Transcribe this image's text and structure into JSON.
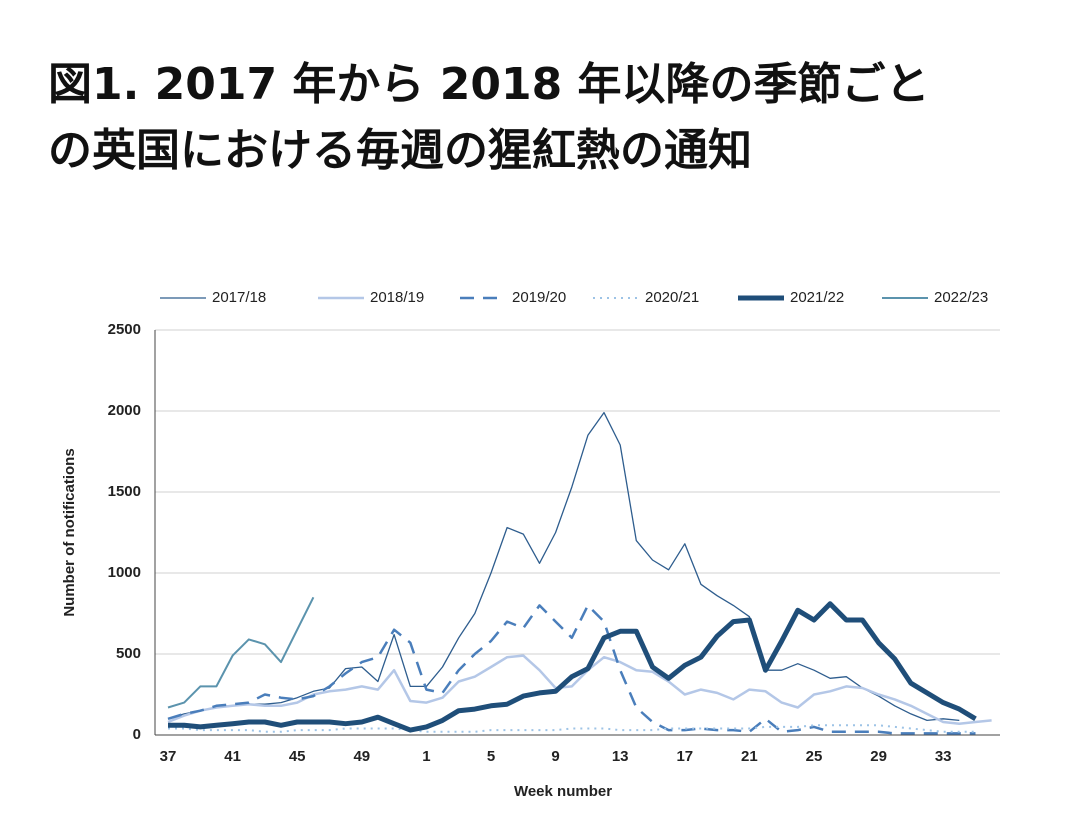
{
  "chart_data": {
    "type": "line",
    "title": [
      "図1. 2017 年から 2018 年以降の季節ごと",
      "の英国における毎週の猩紅熱の通知"
    ],
    "x_label": "Week number",
    "y_label": "Number of notifications",
    "categories": [
      "37",
      null,
      null,
      null,
      "41",
      null,
      null,
      null,
      "45",
      null,
      null,
      null,
      "49",
      null,
      null,
      null,
      "1",
      null,
      null,
      null,
      "5",
      null,
      null,
      null,
      "9",
      null,
      null,
      null,
      "13",
      null,
      null,
      null,
      "17",
      null,
      null,
      null,
      "21",
      null,
      null,
      null,
      "25",
      null,
      null,
      null,
      "29",
      null,
      null,
      null,
      "33",
      null,
      null,
      null
    ],
    "ylim": [
      0,
      2500
    ],
    "yticks": [
      0,
      500,
      1000,
      1500,
      2000,
      2500
    ],
    "grid": true,
    "series": [
      {
        "name": "2017/18",
        "color": "#2e5d8e",
        "dash": "solid",
        "width": 1.3,
        "values": [
          100,
          130,
          150,
          170,
          180,
          190,
          190,
          200,
          230,
          270,
          290,
          410,
          420,
          330,
          620,
          300,
          300,
          420,
          600,
          750,
          1000,
          1280,
          1240,
          1060,
          1250,
          1530,
          1850,
          1990,
          1790,
          1200,
          1080,
          1020,
          1180,
          930,
          860,
          800,
          730,
          400,
          400,
          440,
          400,
          350,
          360,
          290,
          240,
          180,
          130,
          90,
          100,
          90,
          null,
          null
        ]
      },
      {
        "name": "2018/19",
        "color": "#b4c7e7",
        "dash": "solid",
        "width": 2.5,
        "values": [
          80,
          120,
          150,
          170,
          180,
          190,
          180,
          180,
          200,
          250,
          270,
          280,
          300,
          280,
          400,
          210,
          200,
          230,
          330,
          360,
          420,
          480,
          490,
          400,
          290,
          300,
          400,
          480,
          450,
          400,
          390,
          330,
          250,
          280,
          260,
          220,
          280,
          270,
          200,
          170,
          250,
          270,
          300,
          290,
          250,
          220,
          180,
          130,
          80,
          70,
          80,
          90
        ]
      },
      {
        "name": "2019/20",
        "color": "#4a7ebb",
        "dash": "dashed",
        "width": 2.5,
        "values": [
          100,
          130,
          150,
          180,
          190,
          200,
          250,
          230,
          220,
          240,
          300,
          380,
          450,
          480,
          650,
          570,
          280,
          260,
          400,
          500,
          580,
          700,
          660,
          800,
          700,
          600,
          800,
          700,
          400,
          170,
          80,
          30,
          30,
          40,
          30,
          30,
          20,
          100,
          20,
          30,
          50,
          20,
          20,
          20,
          20,
          10,
          10,
          10,
          10,
          10,
          10,
          null
        ]
      },
      {
        "name": "2020/21",
        "color": "#9dc3e6",
        "dash": "dotted",
        "width": 2,
        "values": [
          40,
          40,
          30,
          30,
          30,
          30,
          20,
          20,
          30,
          30,
          30,
          40,
          40,
          40,
          40,
          30,
          20,
          20,
          20,
          20,
          30,
          30,
          30,
          30,
          30,
          40,
          40,
          40,
          30,
          30,
          30,
          40,
          40,
          40,
          40,
          40,
          40,
          50,
          50,
          50,
          60,
          60,
          60,
          60,
          60,
          50,
          40,
          30,
          20,
          20,
          20,
          null
        ]
      },
      {
        "name": "2021/22",
        "color": "#1f4e79",
        "dash": "solid",
        "width": 5,
        "values": [
          60,
          60,
          50,
          60,
          70,
          80,
          80,
          60,
          80,
          80,
          80,
          70,
          80,
          110,
          70,
          30,
          50,
          90,
          150,
          160,
          180,
          190,
          240,
          260,
          270,
          360,
          410,
          600,
          640,
          640,
          420,
          350,
          430,
          480,
          610,
          700,
          710,
          400,
          580,
          770,
          710,
          810,
          710,
          710,
          570,
          470,
          320,
          260,
          200,
          160,
          100,
          null
        ]
      },
      {
        "name": "2022/23",
        "color": "#5b93ad",
        "dash": "solid",
        "width": 2,
        "values": [
          170,
          200,
          300,
          300,
          490,
          590,
          560,
          450,
          650,
          850,
          null,
          null,
          null,
          null,
          null,
          null,
          null,
          null,
          null,
          null,
          null,
          null,
          null,
          null,
          null,
          null,
          null,
          null,
          null,
          null,
          null,
          null,
          null,
          null,
          null,
          null,
          null,
          null,
          null,
          null,
          null,
          null,
          null,
          null,
          null,
          null,
          null,
          null,
          null,
          null,
          null,
          null
        ]
      }
    ]
  }
}
